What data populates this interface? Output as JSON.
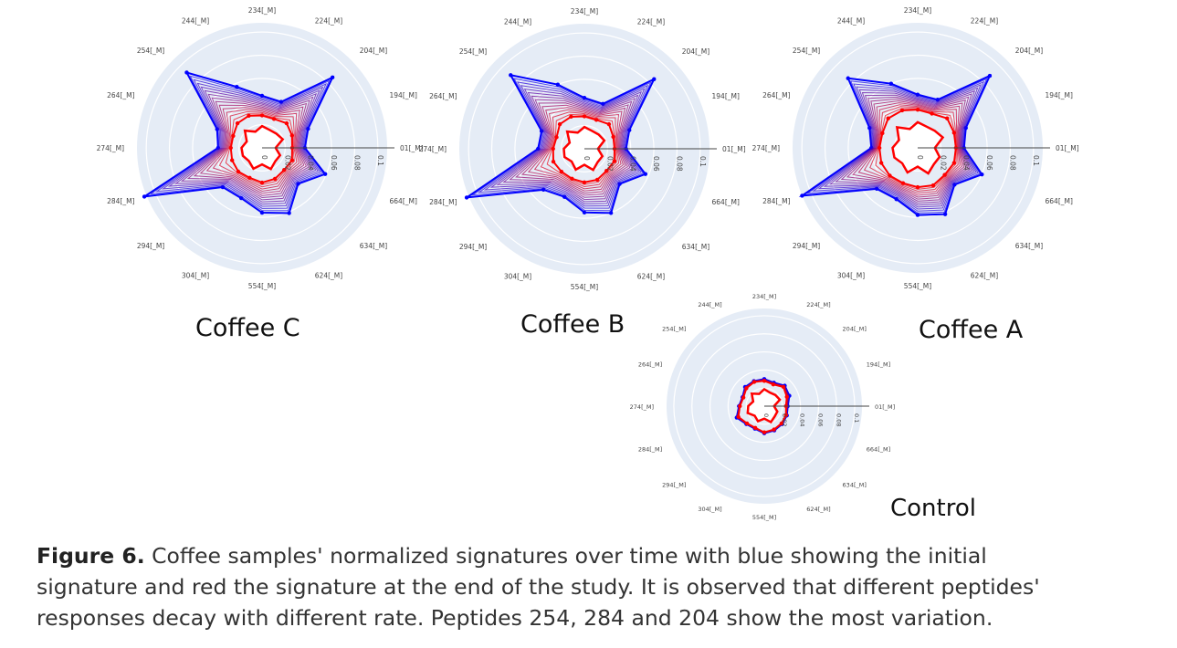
{
  "colors": {
    "initial": "#0000ff",
    "final": "#ff0000",
    "background": "#e5ecf6",
    "grid": "#ffffff",
    "axis_text": "#444444"
  },
  "chart_data": [
    {
      "type": "radar",
      "title": "Coffee C",
      "axes": [
        "01[_M]",
        "194[_M]",
        "204[_M]",
        "224[_M]",
        "234[_M]",
        "244[_M]",
        "254[_M]",
        "264[_M]",
        "274[_M]",
        "284[_M]",
        "294[_M]",
        "304[_M]",
        "554[_M]",
        "624[_M]",
        "634[_M]",
        "664[_M]"
      ],
      "radial_ticks": [
        "0",
        "0.02",
        "0.04",
        "0.06",
        "0.08",
        "0.1"
      ],
      "rlim": [
        0,
        0.108
      ],
      "series": [
        {
          "values": [
            0.037,
            0.043,
            0.086,
            0.043,
            0.045,
            0.057,
            0.092,
            0.042,
            0.038,
            0.11,
            0.048,
            0.047,
            0.056,
            0.061,
            0.044,
            0.059
          ],
          "color": "#0000ff"
        },
        {
          "values": [
            0.026,
            0.028,
            0.03,
            0.027,
            0.028,
            0.03,
            0.03,
            0.027,
            0.027,
            0.028,
            0.029,
            0.028,
            0.03,
            0.029,
            0.027,
            0.028
          ],
          "color": "#ff0000"
        }
      ]
    },
    {
      "type": "radar",
      "title": "Coffee B",
      "axes": [
        "01[_M]",
        "194[_M]",
        "204[_M]",
        "224[_M]",
        "234[_M]",
        "244[_M]",
        "254[_M]",
        "264[_M]",
        "274[_M]",
        "284[_M]",
        "294[_M]",
        "304[_M]",
        "554[_M]",
        "624[_M]",
        "634[_M]",
        "664[_M]"
      ],
      "radial_ticks": [
        "0",
        "0.02",
        "0.04",
        "0.06",
        "0.08",
        "0.1"
      ],
      "rlim": [
        0,
        0.108
      ],
      "series": [
        {
          "values": [
            0.036,
            0.042,
            0.085,
            0.042,
            0.044,
            0.06,
            0.09,
            0.04,
            0.04,
            0.11,
            0.05,
            0.045,
            0.055,
            0.06,
            0.043,
            0.057
          ],
          "color": "#0000ff"
        },
        {
          "values": [
            0.026,
            0.027,
            0.03,
            0.027,
            0.028,
            0.03,
            0.03,
            0.026,
            0.027,
            0.029,
            0.028,
            0.028,
            0.029,
            0.029,
            0.027,
            0.028
          ],
          "color": "#ff0000"
        }
      ]
    },
    {
      "type": "radar",
      "title": "Coffee A",
      "axes": [
        "01[_M]",
        "194[_M]",
        "204[_M]",
        "224[_M]",
        "234[_M]",
        "244[_M]",
        "254[_M]",
        "264[_M]",
        "274[_M]",
        "284[_M]",
        "294[_M]",
        "304[_M]",
        "554[_M]",
        "624[_M]",
        "634[_M]",
        "664[_M]"
      ],
      "radial_ticks": [
        "0",
        "0.02",
        "0.04",
        "0.06",
        "0.08",
        "0.1"
      ],
      "rlim": [
        0,
        0.108
      ],
      "series": [
        {
          "values": [
            0.04,
            0.045,
            0.088,
            0.045,
            0.046,
            0.06,
            0.085,
            0.045,
            0.04,
            0.108,
            0.05,
            0.048,
            0.058,
            0.062,
            0.045,
            0.06
          ],
          "color": "#0000ff"
        },
        {
          "values": [
            0.033,
            0.034,
            0.036,
            0.032,
            0.033,
            0.035,
            0.036,
            0.033,
            0.033,
            0.034,
            0.034,
            0.033,
            0.034,
            0.035,
            0.033,
            0.034
          ],
          "color": "#ff0000"
        }
      ]
    },
    {
      "type": "radar",
      "title": "Control",
      "axes": [
        "01[_M]",
        "194[_M]",
        "204[_M]",
        "224[_M]",
        "234[_M]",
        "244[_M]",
        "254[_M]",
        "264[_M]",
        "274[_M]",
        "284[_M]",
        "294[_M]",
        "304[_M]",
        "554[_M]",
        "624[_M]",
        "634[_M]",
        "664[_M]"
      ],
      "radial_ticks": [
        "0",
        "0.02",
        "0.04",
        "0.06",
        "0.08",
        "0.1"
      ],
      "rlim": [
        0,
        0.108
      ],
      "series": [
        {
          "values": [
            0.026,
            0.03,
            0.032,
            0.028,
            0.03,
            0.03,
            0.03,
            0.026,
            0.028,
            0.033,
            0.028,
            0.027,
            0.03,
            0.029,
            0.028,
            0.027
          ],
          "color": "#0000ff"
        },
        {
          "values": [
            0.024,
            0.027,
            0.03,
            0.026,
            0.028,
            0.029,
            0.028,
            0.025,
            0.027,
            0.031,
            0.027,
            0.026,
            0.029,
            0.028,
            0.027,
            0.026
          ],
          "color": "#ff0000"
        }
      ]
    }
  ],
  "caption": {
    "label": "Figure 6.",
    "line1": " Coffee samples' normalized signatures over time with blue showing the initial",
    "line2": "signature and red the signature at the end of the study. It is observed that different peptides'",
    "line3": "responses decay with different rate. Peptides 254, 284 and 204 show the most variation."
  }
}
